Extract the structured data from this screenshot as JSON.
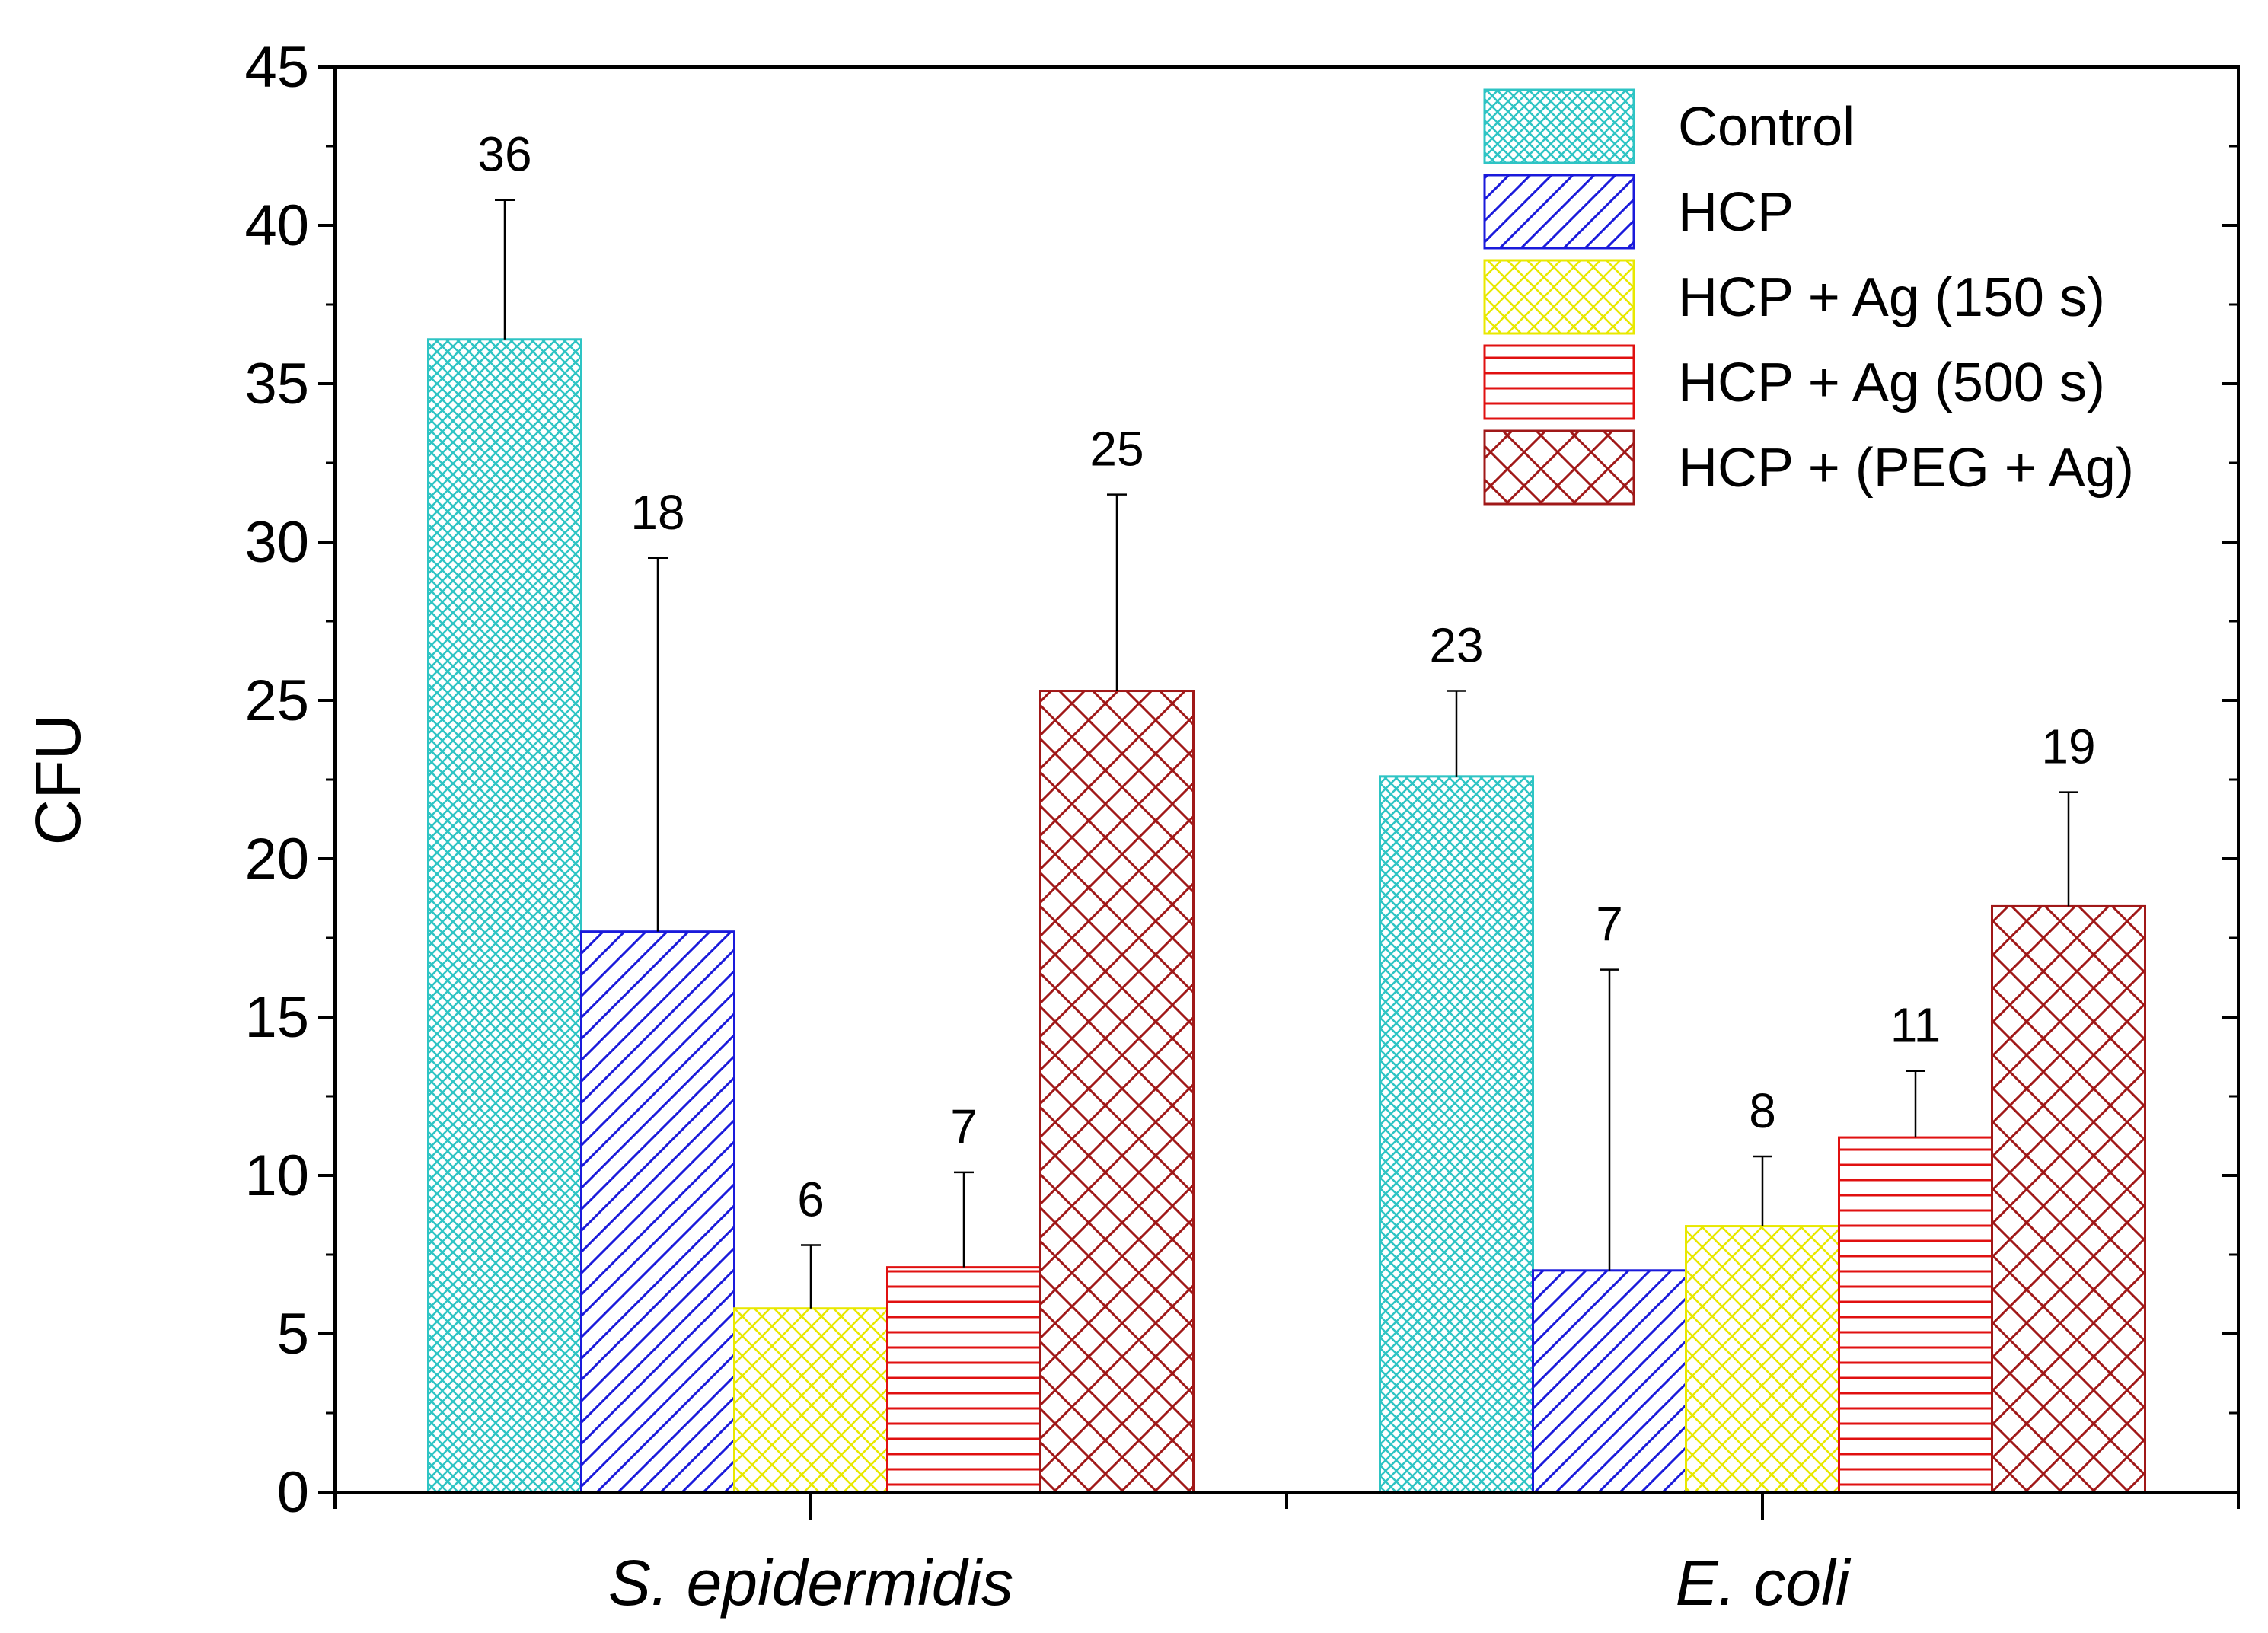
{
  "chart_data": {
    "type": "bar",
    "title": "",
    "xlabel": "",
    "ylabel": "CFU",
    "ylim": [
      0,
      45
    ],
    "yticks": [
      0,
      5,
      10,
      15,
      20,
      25,
      30,
      35,
      40,
      45
    ],
    "ytick_labels": [
      "0",
      "5",
      "10",
      "15",
      "20",
      "25",
      "30",
      "35",
      "40",
      "45"
    ],
    "categories": [
      "S. epidermidis",
      "E. coli"
    ],
    "legend_position": "top-right",
    "series": [
      {
        "name": "Control",
        "pattern": "crosshatch-fine",
        "color": "#2ec4c4",
        "values": [
          36.4,
          22.6
        ],
        "errors": [
          4.4,
          2.7
        ],
        "labels": [
          "36",
          "23"
        ]
      },
      {
        "name": "HCP",
        "pattern": "diagonal",
        "color": "#1a1adb",
        "values": [
          17.7,
          7.0
        ],
        "errors": [
          11.8,
          9.5
        ],
        "labels": [
          "18",
          "7"
        ]
      },
      {
        "name": "HCP + Ag (150 s)",
        "pattern": "crosshatch",
        "color": "#e8e800",
        "values": [
          5.8,
          8.4
        ],
        "errors": [
          2.0,
          2.2
        ],
        "labels": [
          "6",
          "8"
        ]
      },
      {
        "name": "HCP + Ag (500 s)",
        "pattern": "horizontal",
        "color": "#e01010",
        "values": [
          7.1,
          11.2
        ],
        "errors": [
          3.0,
          2.1
        ],
        "labels": [
          "7",
          "11"
        ]
      },
      {
        "name": "HCP + (PEG + Ag)",
        "pattern": "crosshatch-coarse",
        "color": "#a01818",
        "values": [
          25.3,
          18.5
        ],
        "errors": [
          6.2,
          3.6
        ],
        "labels": [
          "25",
          "19"
        ]
      }
    ]
  }
}
